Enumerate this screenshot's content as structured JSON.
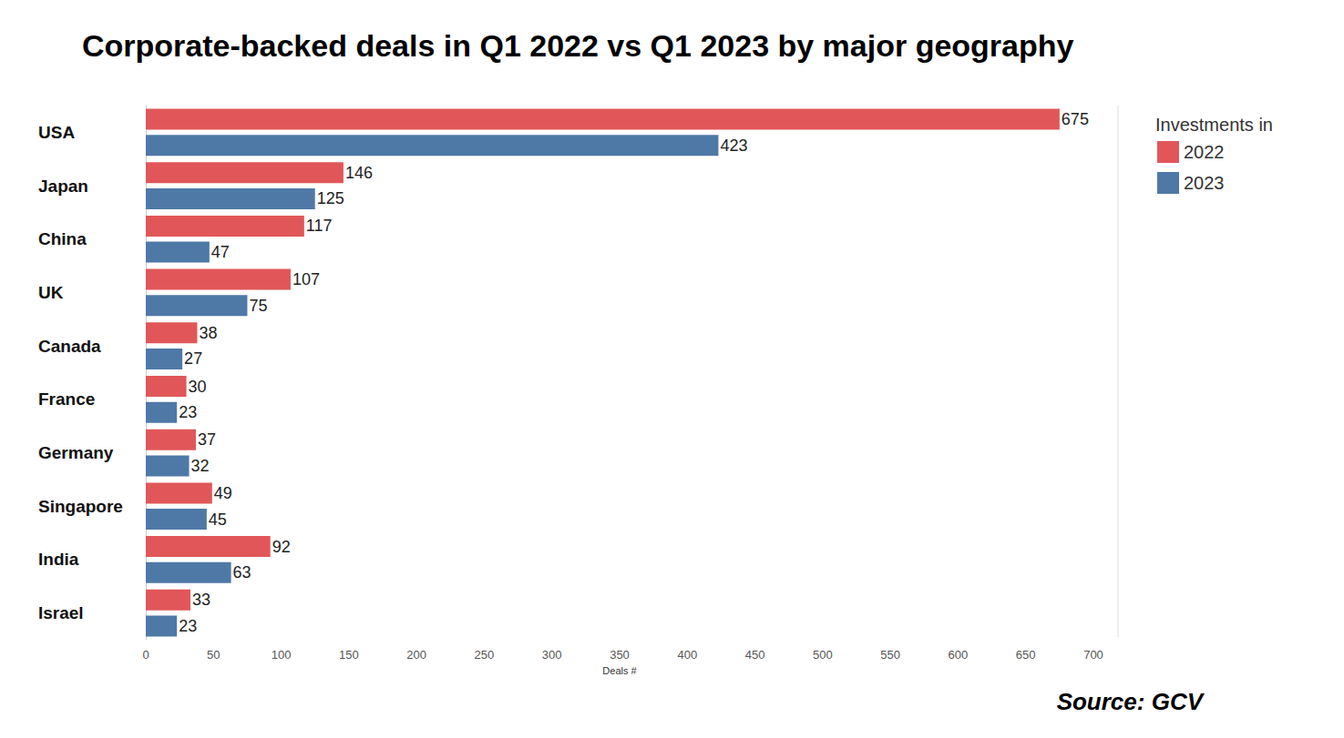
{
  "chart_data": {
    "type": "bar",
    "orientation": "horizontal",
    "title": "Corporate-backed deals in Q1 2022 vs Q1 2023 by major geography",
    "x_label": "Deals #",
    "legend_title": "Investments in",
    "annotations": [
      "Source: GCV"
    ],
    "categories": [
      "USA",
      "Japan",
      "China",
      "UK",
      "Canada",
      "France",
      "Germany",
      "Singapore",
      "India",
      "Israel"
    ],
    "series": [
      {
        "name": "2022",
        "color": "#e15759",
        "values": [
          675,
          146,
          117,
          107,
          38,
          30,
          37,
          49,
          92,
          33
        ]
      },
      {
        "name": "2023",
        "color": "#4e79a7",
        "values": [
          423,
          125,
          47,
          75,
          27,
          23,
          32,
          45,
          63,
          23
        ]
      }
    ],
    "xlim": [
      0,
      700
    ],
    "xticks": [
      0,
      50,
      100,
      150,
      200,
      250,
      300,
      350,
      400,
      450,
      500,
      550,
      600,
      650,
      700
    ],
    "grid": false,
    "legend": "top-right",
    "data_labels": true
  }
}
